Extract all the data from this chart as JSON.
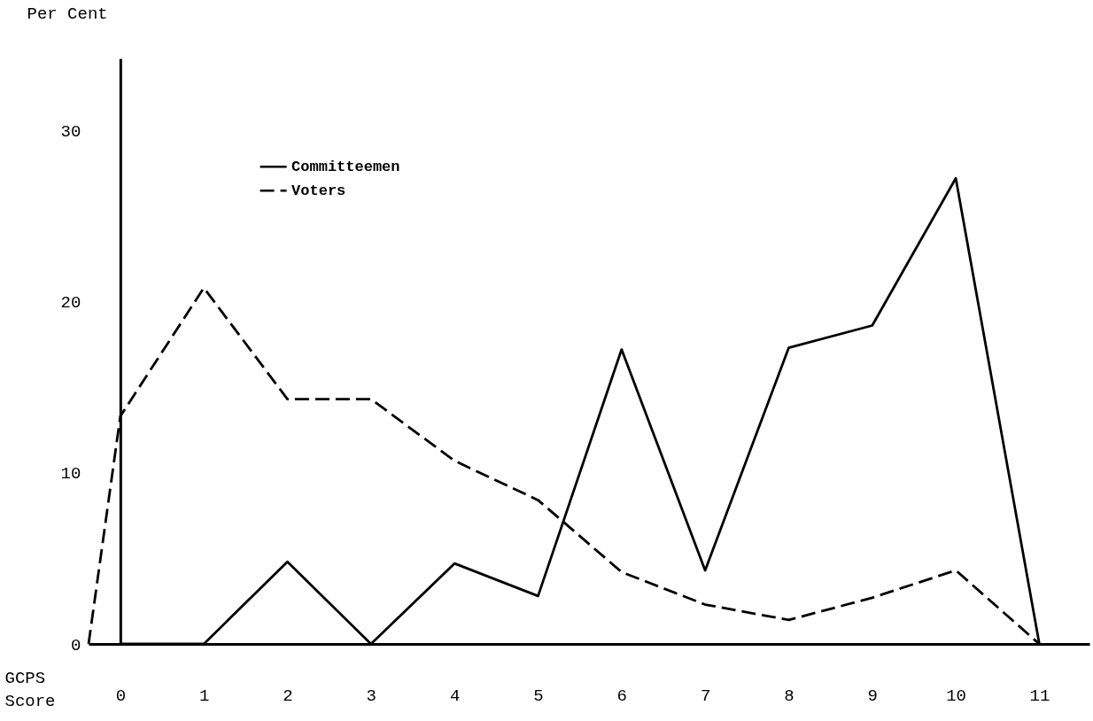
{
  "chart_data": {
    "type": "line",
    "ylabel": "Per Cent",
    "xlabel": "GCPS Score",
    "x": [
      0,
      1,
      2,
      3,
      4,
      5,
      6,
      7,
      8,
      9,
      10,
      11
    ],
    "series": [
      {
        "name": "Committeemen",
        "color": "#000000",
        "line_style": "solid",
        "values": [
          0,
          0,
          4.8,
          0,
          4.7,
          2.8,
          17.2,
          4.3,
          17.3,
          18.6,
          27.2,
          0
        ]
      },
      {
        "name": "Voters",
        "color": "#000000",
        "line_style": "dashed",
        "x": [
          -0.38,
          0,
          1,
          2,
          3,
          4,
          5,
          6,
          7,
          8,
          9,
          10,
          11
        ],
        "values": [
          0,
          13.3,
          20.8,
          14.3,
          14.3,
          10.7,
          8.4,
          4.2,
          2.3,
          1.4,
          2.7,
          4.3,
          0
        ]
      }
    ],
    "xlim": [
      -0.38,
      11.6
    ],
    "ylim": [
      0,
      34.2
    ],
    "xticks": [
      0,
      1,
      2,
      3,
      4,
      5,
      6,
      7,
      8,
      9,
      10,
      11
    ],
    "yticks": [
      0,
      10,
      20,
      30
    ],
    "grid": false,
    "legend": "top",
    "marker": "none"
  }
}
